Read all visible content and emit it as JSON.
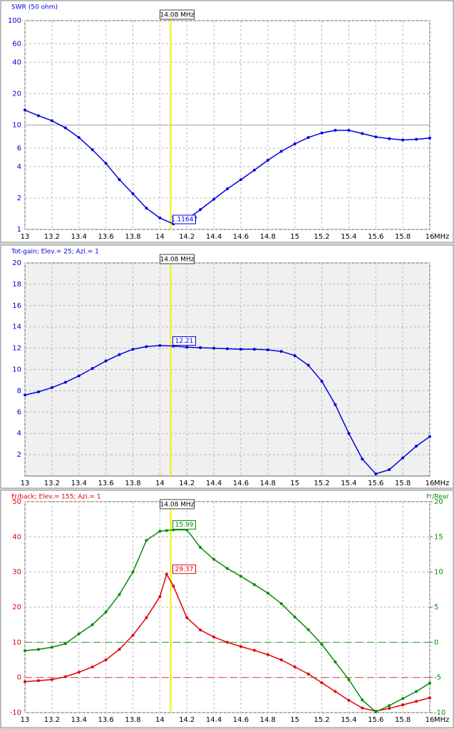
{
  "chart_data": [
    {
      "type": "line",
      "x_unit": "MHz",
      "yscale": "log",
      "grid": true,
      "plot_bg": "#ffffff",
      "marker": {
        "x": 14.08,
        "label": "14.08 MHz"
      },
      "x": [
        13,
        13.1,
        13.2,
        13.3,
        13.4,
        13.5,
        13.6,
        13.7,
        13.8,
        13.9,
        14.0,
        14.1,
        14.2,
        14.3,
        14.4,
        14.5,
        14.6,
        14.7,
        14.8,
        14.9,
        15.0,
        15.1,
        15.2,
        15.3,
        15.4,
        15.5,
        15.6,
        15.7,
        15.8,
        15.9,
        16.0
      ],
      "series": [
        {
          "name": "SWR (50 ohm)",
          "color": "#0000e0",
          "readout": 1.11647,
          "values": [
            13.9,
            12.3,
            11,
            9.4,
            7.6,
            5.8,
            4.3,
            3.0,
            2.2,
            1.6,
            1.29,
            1.13,
            1.25,
            1.55,
            1.95,
            2.45,
            3.0,
            3.7,
            4.6,
            5.6,
            6.6,
            7.6,
            8.4,
            8.9,
            8.9,
            8.3,
            7.7,
            7.4,
            7.2,
            7.3,
            7.5
          ]
        }
      ],
      "ref_lines": [
        {
          "value": 10,
          "axis": "y",
          "color": "#b0b0b0",
          "style": "solid"
        }
      ],
      "xlim": [
        13,
        16
      ],
      "xticks": [
        13,
        13.2,
        13.4,
        13.6,
        13.8,
        14,
        14.2,
        14.4,
        14.6,
        14.8,
        15,
        15.2,
        15.4,
        15.6,
        15.8,
        16
      ],
      "ylim": [
        1,
        100
      ],
      "yticks": [
        1,
        2,
        4,
        6,
        10,
        20,
        40,
        60,
        100
      ]
    },
    {
      "type": "line",
      "x_unit": "MHz",
      "grid": true,
      "plot_bg": "#f0f0f0",
      "marker": {
        "x": 14.08,
        "label": "14.08 MHz"
      },
      "x": [
        13,
        13.1,
        13.2,
        13.3,
        13.4,
        13.5,
        13.6,
        13.7,
        13.8,
        13.9,
        14.0,
        14.1,
        14.2,
        14.3,
        14.4,
        14.5,
        14.6,
        14.7,
        14.8,
        14.9,
        15.0,
        15.1,
        15.2,
        15.3,
        15.4,
        15.5,
        15.6,
        15.7,
        15.8,
        15.9,
        16.0
      ],
      "series": [
        {
          "name": "Tot-gain; Elev.= 25; Azi.= 1",
          "color": "#0000e0",
          "readout": 12.21,
          "values": [
            7.6,
            7.9,
            8.3,
            8.8,
            9.4,
            10.1,
            10.8,
            11.4,
            11.9,
            12.15,
            12.25,
            12.2,
            12.1,
            12.05,
            12.0,
            11.95,
            11.9,
            11.9,
            11.85,
            11.7,
            11.3,
            10.4,
            8.9,
            6.7,
            4.0,
            1.6,
            0.2,
            0.6,
            1.7,
            2.8,
            3.7
          ]
        }
      ],
      "xlim": [
        13,
        16
      ],
      "xticks": [
        13,
        13.2,
        13.4,
        13.6,
        13.8,
        14,
        14.2,
        14.4,
        14.6,
        14.8,
        15,
        15.2,
        15.4,
        15.6,
        15.8,
        16
      ],
      "ylim": [
        0,
        20
      ],
      "yticks": [
        2,
        4,
        6,
        8,
        10,
        12,
        14,
        16,
        18,
        20
      ]
    },
    {
      "type": "line",
      "x_unit": "MHz",
      "grid": true,
      "plot_bg": "#ffffff",
      "marker": {
        "x": 14.08,
        "label": "14.08 MHz"
      },
      "x": [
        13,
        13.1,
        13.2,
        13.3,
        13.4,
        13.5,
        13.6,
        13.7,
        13.8,
        13.9,
        14.0,
        14.05,
        14.1,
        14.2,
        14.3,
        14.4,
        14.5,
        14.6,
        14.7,
        14.8,
        14.9,
        15.0,
        15.1,
        15.2,
        15.3,
        15.4,
        15.5,
        15.6,
        15.7,
        15.8,
        15.9,
        16.0
      ],
      "series": [
        {
          "name": "Fr/back; Elev.= 155; Azi.= 1",
          "color": "#e00000",
          "readout": 29.37,
          "values": [
            -1.2,
            -0.9,
            -0.6,
            0.2,
            1.5,
            3,
            5,
            8,
            12,
            17,
            23,
            29.37,
            26,
            17,
            13.5,
            11.5,
            10,
            8.8,
            7.7,
            6.5,
            5,
            3,
            1,
            -1.5,
            -4,
            -6.5,
            -8.7,
            -9.6,
            -8.8,
            -7.8,
            -6.8,
            -5.8
          ]
        },
        {
          "name": "Fr/Rear",
          "color": "#008c00",
          "axis": "y2",
          "readout": 15.99,
          "values": [
            -1.2,
            -1.0,
            -0.7,
            -0.2,
            1.2,
            2.5,
            4.3,
            6.8,
            10,
            14.5,
            15.8,
            15.9,
            15.99,
            16.0,
            13.5,
            11.8,
            10.5,
            9.4,
            8.2,
            7.0,
            5.5,
            3.6,
            1.8,
            -0.3,
            -2.8,
            -5.3,
            -8.2,
            -9.9,
            -9.0,
            -8.0,
            -7.0,
            -5.8
          ]
        }
      ],
      "ref_lines": [
        {
          "value": 0,
          "axis": "y",
          "color": "#e05050",
          "style": "dashed"
        },
        {
          "value": 0,
          "axis": "y2",
          "color": "#40a040",
          "style": "dashed"
        }
      ],
      "xlim": [
        13,
        16
      ],
      "xticks": [
        13,
        13.2,
        13.4,
        13.6,
        13.8,
        14,
        14.2,
        14.4,
        14.6,
        14.8,
        15,
        15.2,
        15.4,
        15.6,
        15.8,
        16
      ],
      "ylim": [
        -10,
        50
      ],
      "yticks": [
        -10,
        0,
        10,
        20,
        30,
        40,
        50
      ],
      "y2lim": [
        -10,
        20
      ],
      "y2ticks": [
        -10,
        -5,
        0,
        5,
        10,
        15,
        20
      ]
    }
  ]
}
